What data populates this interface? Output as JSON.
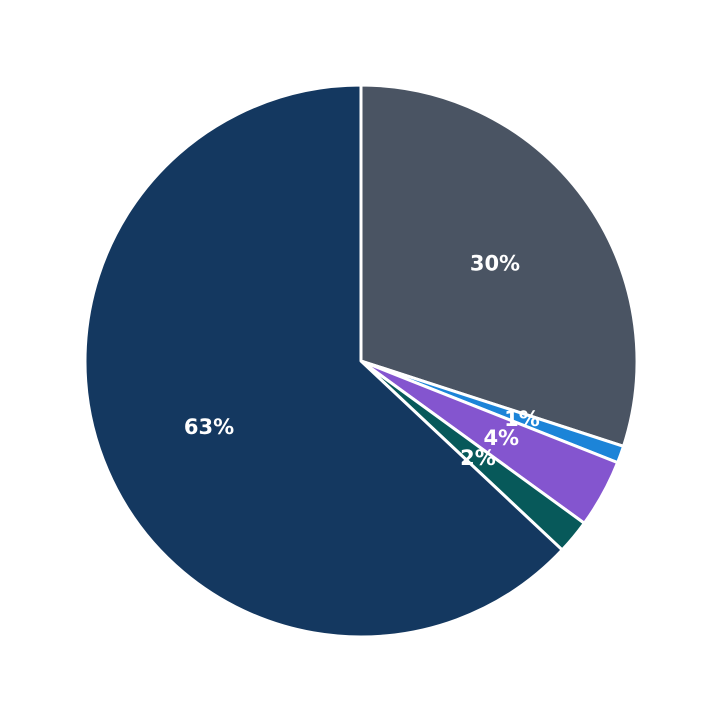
{
  "chart_data": {
    "type": "pie",
    "title": "",
    "start_angle_deg": 0,
    "direction": "clockwise",
    "slices": [
      {
        "value": 30.0,
        "label": "30%",
        "color": "#4a5463"
      },
      {
        "value": 1.0,
        "label": "1%",
        "color": "#1c84d8"
      },
      {
        "value": 4.0,
        "label": "4%",
        "color": "#8455cf"
      },
      {
        "value": 2.0,
        "label": "2%",
        "color": "#07595a"
      },
      {
        "value": 63.0,
        "label": "63%",
        "color": "#143860"
      }
    ]
  }
}
